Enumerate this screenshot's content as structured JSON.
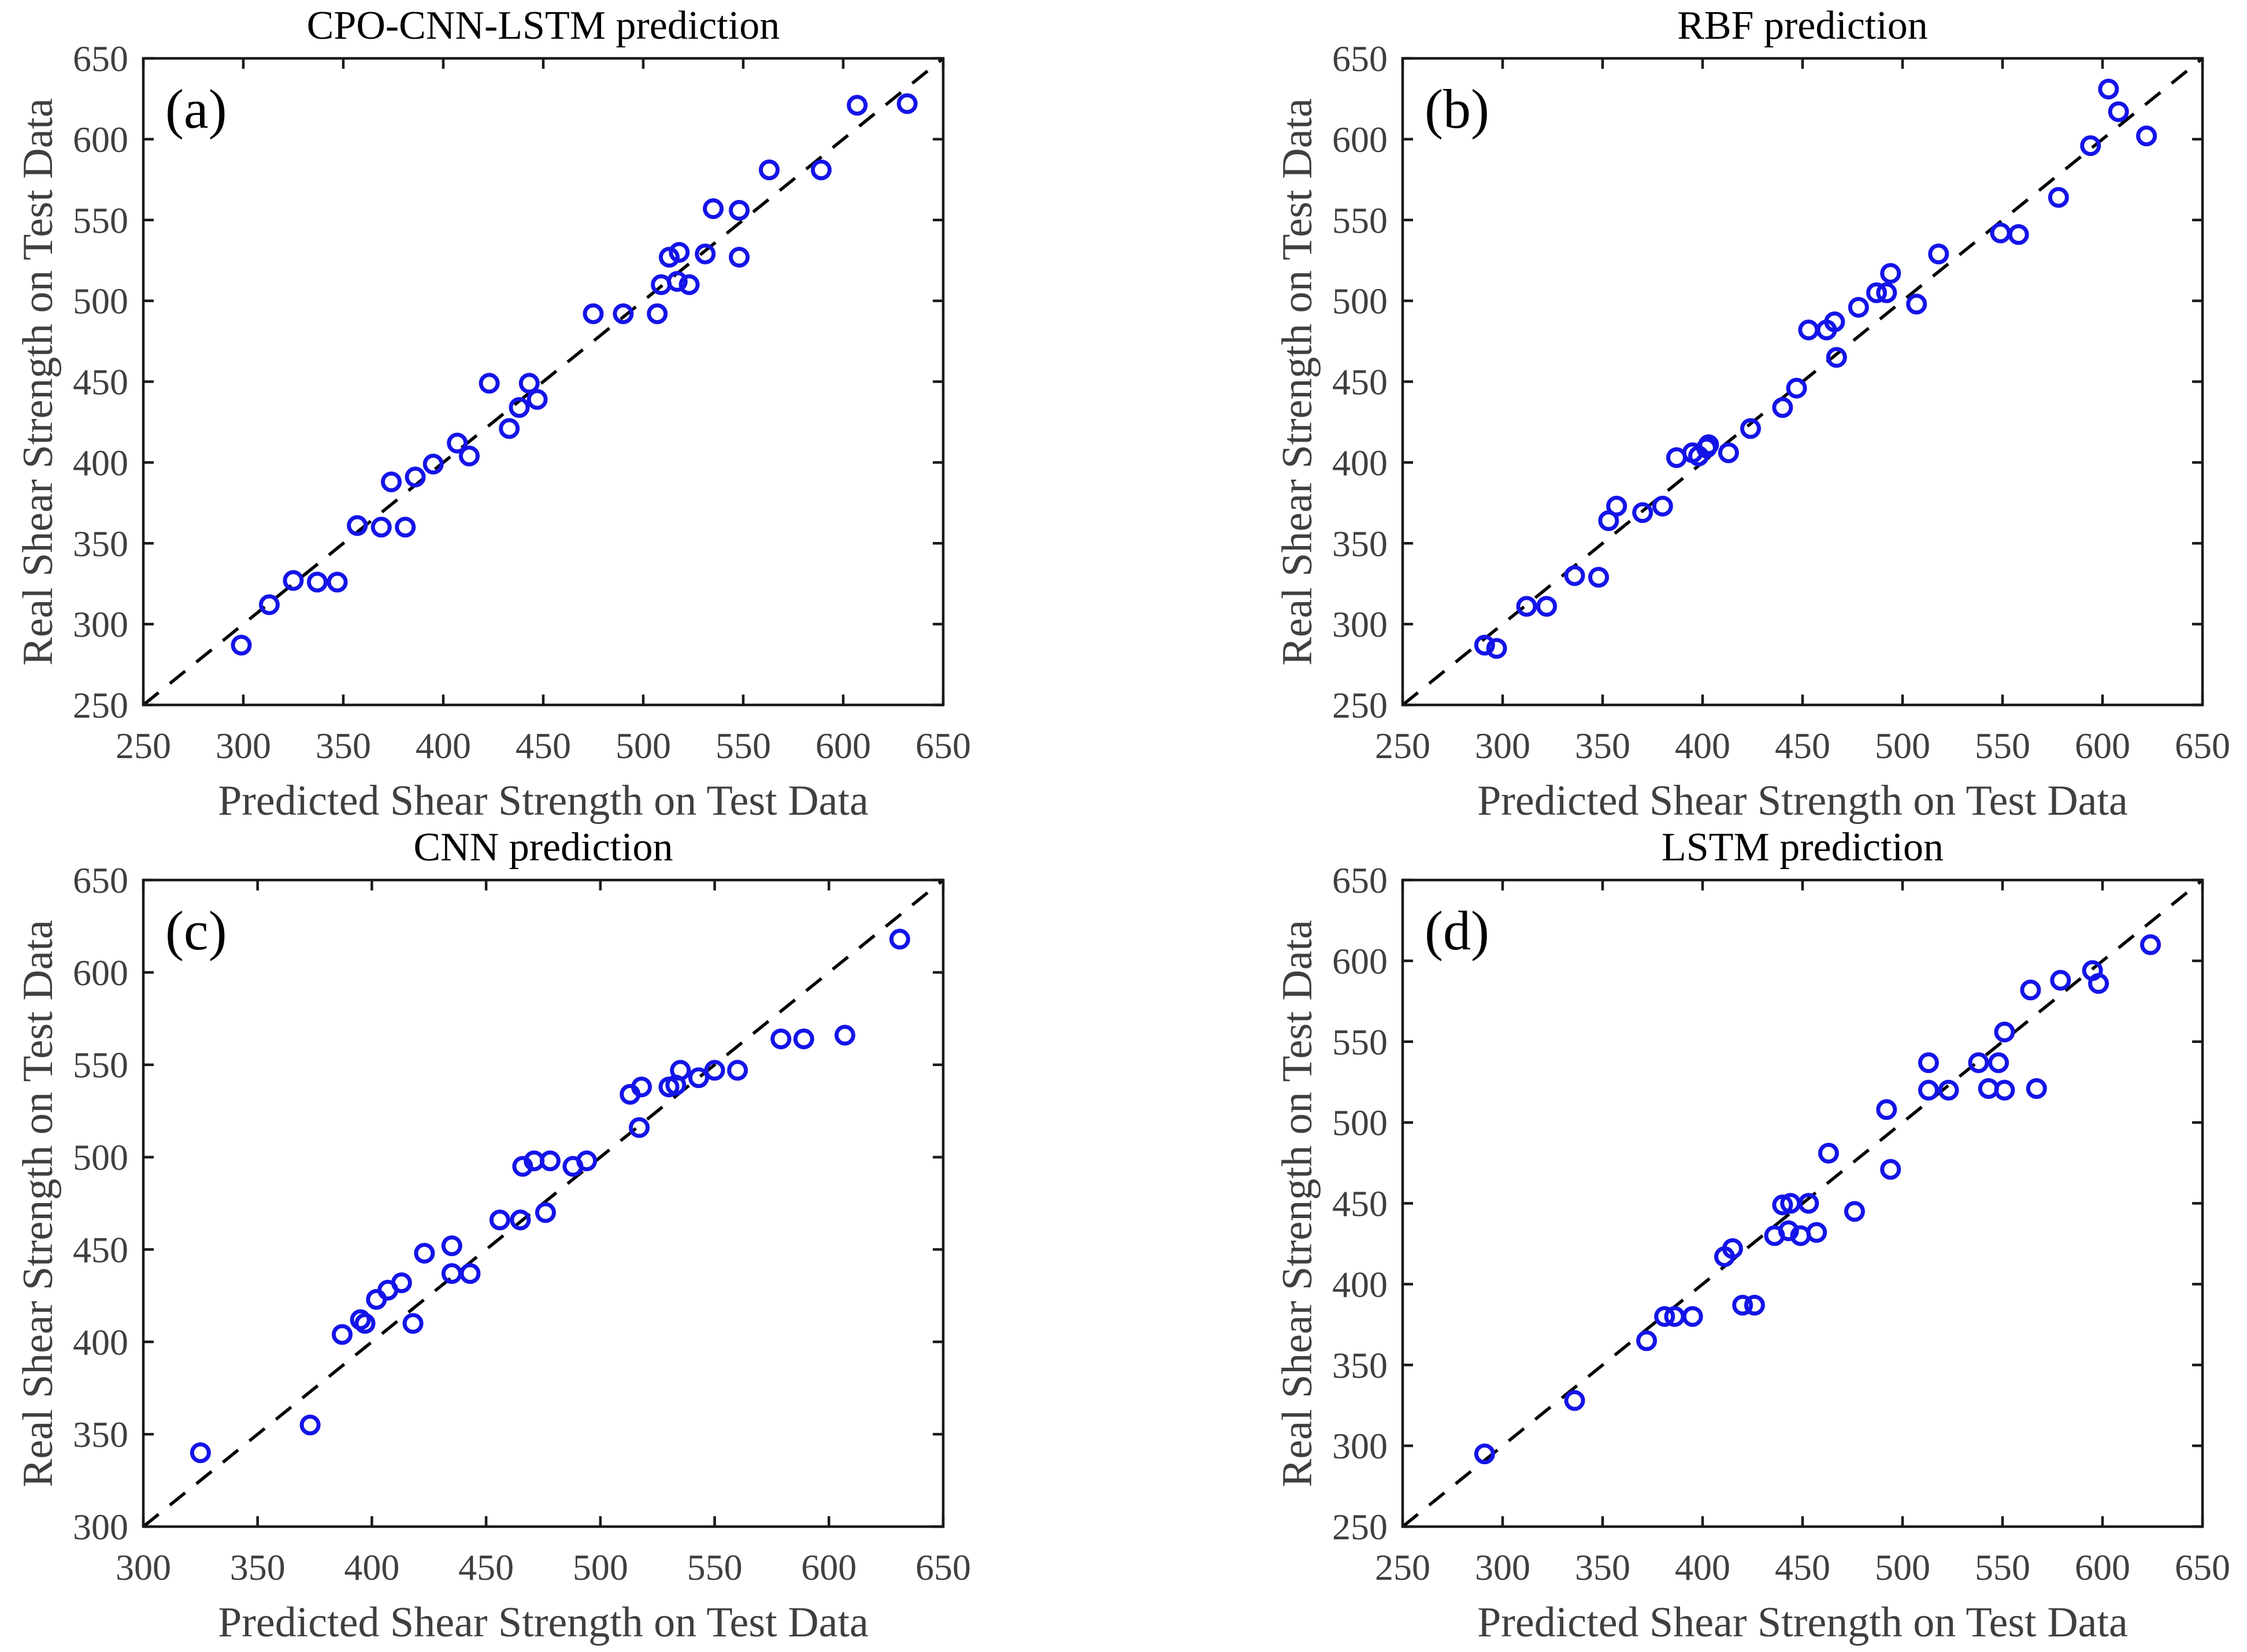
{
  "figure": {
    "background": "#FFFFFF",
    "layout": "2x2 scatter subplots"
  },
  "colors": {
    "marker": "#1414E8",
    "axis": "#1A1A1A",
    "tick_text": "#3F3F3F",
    "label_text": "#3F3F3F",
    "title_text": "#000000",
    "ref_line": "#000000"
  },
  "chart_data": [
    {
      "type": "scatter",
      "panel_label": "(a)",
      "title": "CPO-CNN-LSTM prediction",
      "xlabel": "Predicted Shear Strength on Test Data",
      "ylabel": "Real Shear Strength on Test Data",
      "xlim": [
        250,
        650
      ],
      "ylim": [
        250,
        650
      ],
      "xticks": [
        250,
        300,
        350,
        400,
        450,
        500,
        550,
        600,
        650
      ],
      "yticks": [
        250,
        300,
        350,
        400,
        450,
        500,
        550,
        600,
        650
      ],
      "reference_line": "y = x dashed",
      "grid": false,
      "legend": null,
      "points": [
        [
          299,
          287
        ],
        [
          313,
          312
        ],
        [
          325,
          327
        ],
        [
          337,
          326
        ],
        [
          347,
          326
        ],
        [
          357,
          361
        ],
        [
          369,
          360
        ],
        [
          381,
          360
        ],
        [
          374,
          388
        ],
        [
          386,
          391
        ],
        [
          395,
          399
        ],
        [
          407,
          412
        ],
        [
          413,
          404
        ],
        [
          423,
          449
        ],
        [
          433,
          421
        ],
        [
          438,
          434
        ],
        [
          447,
          439
        ],
        [
          443,
          449
        ],
        [
          475,
          492
        ],
        [
          490,
          492
        ],
        [
          507,
          492
        ],
        [
          509,
          510
        ],
        [
          513,
          527
        ],
        [
          517,
          512
        ],
        [
          518,
          530
        ],
        [
          523,
          510
        ],
        [
          531,
          529
        ],
        [
          535,
          557
        ],
        [
          548,
          556
        ],
        [
          548,
          527
        ],
        [
          563,
          581
        ],
        [
          589,
          581
        ],
        [
          607,
          621
        ],
        [
          632,
          622
        ]
      ]
    },
    {
      "type": "scatter",
      "panel_label": "(b)",
      "title": "RBF prediction",
      "xlabel": "Predicted Shear Strength on Test Data",
      "ylabel": "Real Shear Strength on Test Data",
      "xlim": [
        250,
        650
      ],
      "ylim": [
        250,
        650
      ],
      "xticks": [
        250,
        300,
        350,
        400,
        450,
        500,
        550,
        600,
        650
      ],
      "yticks": [
        250,
        300,
        350,
        400,
        450,
        500,
        550,
        600,
        650
      ],
      "reference_line": "y = x dashed",
      "grid": false,
      "legend": null,
      "points": [
        [
          291,
          287
        ],
        [
          297,
          285
        ],
        [
          312,
          311
        ],
        [
          322,
          311
        ],
        [
          336,
          330
        ],
        [
          348,
          329
        ],
        [
          353,
          364
        ],
        [
          357,
          373
        ],
        [
          370,
          369
        ],
        [
          380,
          373
        ],
        [
          387,
          403
        ],
        [
          395,
          406
        ],
        [
          398,
          404
        ],
        [
          402,
          409
        ],
        [
          403,
          411
        ],
        [
          413,
          406
        ],
        [
          424,
          421
        ],
        [
          440,
          434
        ],
        [
          447,
          446
        ],
        [
          453,
          482
        ],
        [
          462,
          482
        ],
        [
          466,
          487
        ],
        [
          467,
          465
        ],
        [
          478,
          496
        ],
        [
          487,
          505
        ],
        [
          492,
          505
        ],
        [
          494,
          517
        ],
        [
          507,
          498
        ],
        [
          518,
          529
        ],
        [
          549,
          542
        ],
        [
          558,
          541
        ],
        [
          578,
          564
        ],
        [
          594,
          596
        ],
        [
          603,
          631
        ],
        [
          608,
          617
        ],
        [
          622,
          602
        ]
      ]
    },
    {
      "type": "scatter",
      "panel_label": "(c)",
      "title": "CNN prediction",
      "xlabel": "Predicted Shear Strength on Test Data",
      "ylabel": "Real Shear Strength on Test Data",
      "xlim": [
        300,
        650
      ],
      "ylim": [
        300,
        650
      ],
      "xticks": [
        300,
        350,
        400,
        450,
        500,
        550,
        600,
        650
      ],
      "yticks": [
        300,
        350,
        400,
        450,
        500,
        550,
        600,
        650
      ],
      "reference_line": "y = x dashed",
      "grid": false,
      "legend": null,
      "points": [
        [
          325,
          340
        ],
        [
          373,
          355
        ],
        [
          387,
          404
        ],
        [
          395,
          412
        ],
        [
          397,
          410
        ],
        [
          402,
          423
        ],
        [
          407,
          428
        ],
        [
          413,
          432
        ],
        [
          418,
          410
        ],
        [
          423,
          448
        ],
        [
          435,
          452
        ],
        [
          435,
          437
        ],
        [
          443,
          437
        ],
        [
          456,
          466
        ],
        [
          465,
          466
        ],
        [
          476,
          470
        ],
        [
          466,
          495
        ],
        [
          471,
          498
        ],
        [
          478,
          498
        ],
        [
          488,
          495
        ],
        [
          494,
          498
        ],
        [
          513,
          534
        ],
        [
          517,
          516
        ],
        [
          518,
          538
        ],
        [
          530,
          538
        ],
        [
          533,
          539
        ],
        [
          535,
          547
        ],
        [
          543,
          543
        ],
        [
          550,
          547
        ],
        [
          560,
          547
        ],
        [
          579,
          564
        ],
        [
          589,
          564
        ],
        [
          607,
          566
        ],
        [
          631,
          618
        ]
      ]
    },
    {
      "type": "scatter",
      "panel_label": "(d)",
      "title": "LSTM prediction",
      "xlabel": "Predicted Shear Strength on Test Data",
      "ylabel": "Real Shear Strength on Test Data",
      "xlim": [
        250,
        650
      ],
      "ylim": [
        250,
        650
      ],
      "xticks": [
        250,
        300,
        350,
        400,
        450,
        500,
        550,
        600,
        650
      ],
      "yticks": [
        250,
        300,
        350,
        400,
        450,
        500,
        550,
        600,
        650
      ],
      "reference_line": "y = x dashed",
      "grid": false,
      "legend": null,
      "points": [
        [
          291,
          295
        ],
        [
          336,
          328
        ],
        [
          372,
          365
        ],
        [
          381,
          380
        ],
        [
          386,
          380
        ],
        [
          395,
          380
        ],
        [
          411,
          417
        ],
        [
          415,
          422
        ],
        [
          420,
          387
        ],
        [
          426,
          387
        ],
        [
          436,
          430
        ],
        [
          440,
          449
        ],
        [
          443,
          433
        ],
        [
          444,
          450
        ],
        [
          449,
          430
        ],
        [
          453,
          450
        ],
        [
          457,
          432
        ],
        [
          463,
          481
        ],
        [
          476,
          445
        ],
        [
          492,
          508
        ],
        [
          494,
          471
        ],
        [
          513,
          537
        ],
        [
          513,
          520
        ],
        [
          523,
          520
        ],
        [
          538,
          537
        ],
        [
          543,
          521
        ],
        [
          548,
          537
        ],
        [
          551,
          520
        ],
        [
          551,
          556
        ],
        [
          564,
          582
        ],
        [
          567,
          521
        ],
        [
          579,
          588
        ],
        [
          595,
          594
        ],
        [
          598,
          586
        ],
        [
          624,
          610
        ]
      ]
    }
  ]
}
